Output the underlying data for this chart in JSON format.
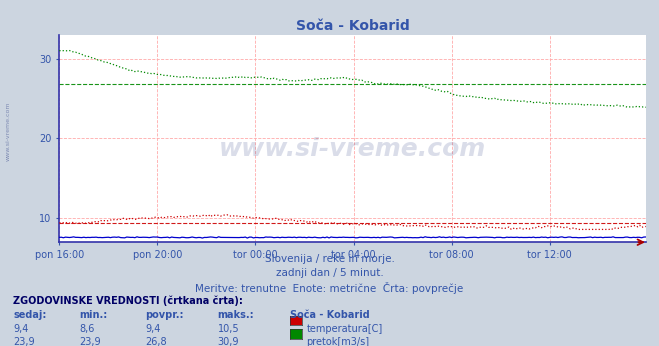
{
  "title": "Soča - Kobarid",
  "background_color": "#ccd5e0",
  "plot_bg_color": "#ffffff",
  "subtitle_lines": [
    "Slovenija / reke in morje.",
    "zadnji dan / 5 minut.",
    "Meritve: trenutne  Enote: metrične  Črta: povprečje"
  ],
  "table_header": "ZGODOVINSKE VREDNOSTI (črtkana črta):",
  "table_cols": [
    "sedaj:",
    "min.:",
    "povpr.:",
    "maks.:"
  ],
  "table_col_extra": "Soča - Kobarid",
  "table_rows": [
    {
      "sedaj": "9,4",
      "min": "8,6",
      "povpr": "9,4",
      "maks": "10,5",
      "label": "temperatura[C]",
      "color": "#cc0000"
    },
    {
      "sedaj": "23,9",
      "min": "23,9",
      "povpr": "26,8",
      "maks": "30,9",
      "label": "pretok[m3/s]",
      "color": "#008800"
    }
  ],
  "xticklabels": [
    "pon 16:00",
    "pon 20:00",
    "tor 00:00",
    "tor 04:00",
    "tor 08:00",
    "tor 12:00"
  ],
  "xtick_positions": [
    0,
    48,
    96,
    144,
    192,
    240
  ],
  "yticks": [
    10,
    20,
    30
  ],
  "ylim": [
    7,
    33
  ],
  "xlim": [
    0,
    287
  ],
  "watermark": "www.si-vreme.com",
  "temp_color": "#cc0000",
  "flow_color": "#008800",
  "height_color": "#0000cc",
  "avg_temp": 9.4,
  "avg_flow": 26.8,
  "n_points": 288,
  "text_color": "#3355aa",
  "grid_color": "#ffaaaa"
}
